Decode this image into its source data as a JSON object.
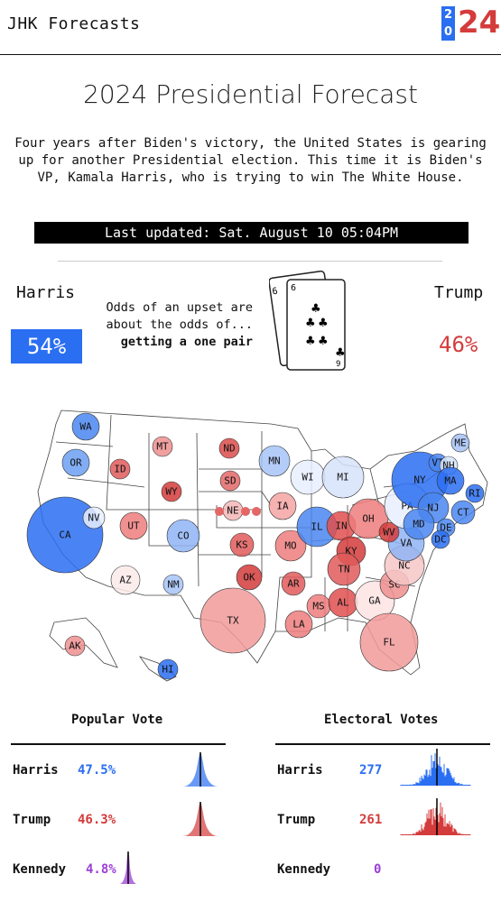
{
  "header": {
    "brand": "JHK Forecasts",
    "logo_top": "2",
    "logo_bottom": "0",
    "logo_big": "24"
  },
  "page_title": "2024 Presidential Forecast",
  "intro": "Four years after Biden's victory, the United States is gearing up for another Presidential election. This time it is Biden's VP, Kamala Harris, who is trying to win The White House.",
  "last_updated": "Last updated: Sat. August 10 05:04PM",
  "odds": {
    "harris_label": "Harris",
    "harris_pct": "54%",
    "trump_label": "Trump",
    "trump_pct": "46%",
    "upset_line1": "Odds of an upset are",
    "upset_line2": "about the odds of...",
    "upset_line3": "getting a one pair",
    "card_back_rank": "6",
    "card_front_rank": "6",
    "card_front_bottom": "9"
  },
  "colors": {
    "dem": "#2a6ef2",
    "rep": "#d43b3b",
    "kennedy": "#9b3fd6"
  },
  "map_states": [
    "WA",
    "OR",
    "CA",
    "NV",
    "ID",
    "MT",
    "WY",
    "UT",
    "AZ",
    "CO",
    "NM",
    "ND",
    "SD",
    "NE",
    "KS",
    "OK",
    "TX",
    "MN",
    "IA",
    "MO",
    "AR",
    "LA",
    "WI",
    "IL",
    "MI",
    "IN",
    "OH",
    "KY",
    "TN",
    "MS",
    "AL",
    "GA",
    "FL",
    "SC",
    "NC",
    "VA",
    "WV",
    "PA",
    "NY",
    "VT",
    "NH",
    "ME",
    "MA",
    "RI",
    "CT",
    "NJ",
    "DE",
    "MD",
    "DC",
    "AK",
    "HI"
  ],
  "popular_vote": {
    "heading": "Popular Vote",
    "rows": [
      {
        "name": "Harris",
        "value": "47.5%",
        "pct": 47.5
      },
      {
        "name": "Trump",
        "value": "46.3%",
        "pct": 46.3
      },
      {
        "name": "Kennedy",
        "value": "4.8%",
        "pct": 4.8
      }
    ]
  },
  "electoral_votes": {
    "heading": "Electoral Votes",
    "rows": [
      {
        "name": "Harris",
        "value": "277"
      },
      {
        "name": "Trump",
        "value": "261"
      },
      {
        "name": "Kennedy",
        "value": "0"
      }
    ]
  }
}
